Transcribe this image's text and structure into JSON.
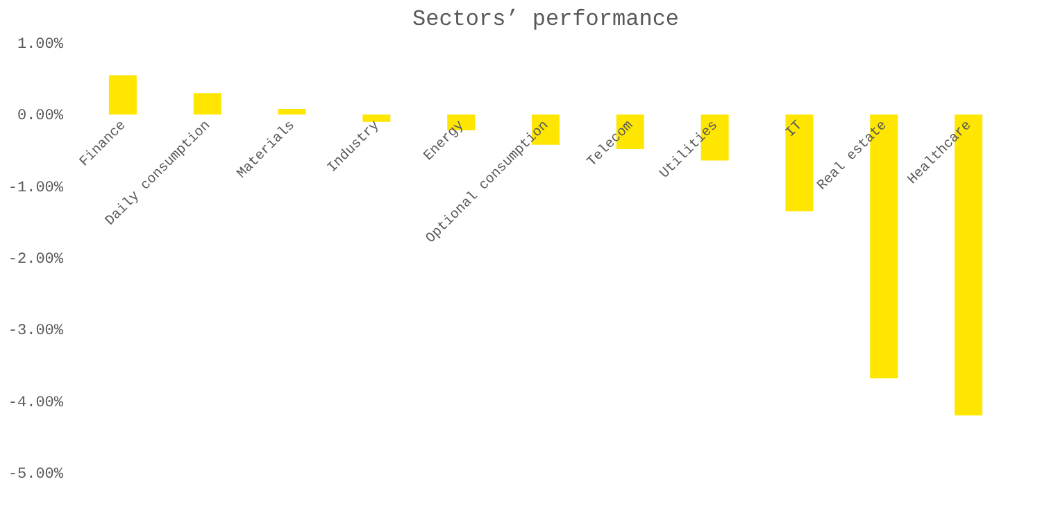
{
  "chart_data": {
    "type": "bar",
    "title": "Sectors’ performance",
    "categories": [
      "Finance",
      "Daily consumption",
      "Materials",
      "Industry",
      "Energy",
      "Optional consumption",
      "Telecom",
      "Utilities",
      "IT",
      "Real estate",
      "Healthcare"
    ],
    "values": [
      0.55,
      0.3,
      0.08,
      -0.1,
      -0.22,
      -0.42,
      -0.48,
      -0.64,
      -1.35,
      -3.68,
      -4.2
    ],
    "color": "#ffe600",
    "ylim": [
      -5,
      1
    ],
    "yticks": [
      {
        "value": 1,
        "label": "1.00%"
      },
      {
        "value": 0,
        "label": "0.00%"
      },
      {
        "value": -1,
        "label": "-1.00%"
      },
      {
        "value": -2,
        "label": "-2.00%"
      },
      {
        "value": -3,
        "label": "-3.00%"
      },
      {
        "value": -4,
        "label": "-4.00%"
      },
      {
        "value": -5,
        "label": "-5.00%"
      }
    ],
    "grid": false
  }
}
